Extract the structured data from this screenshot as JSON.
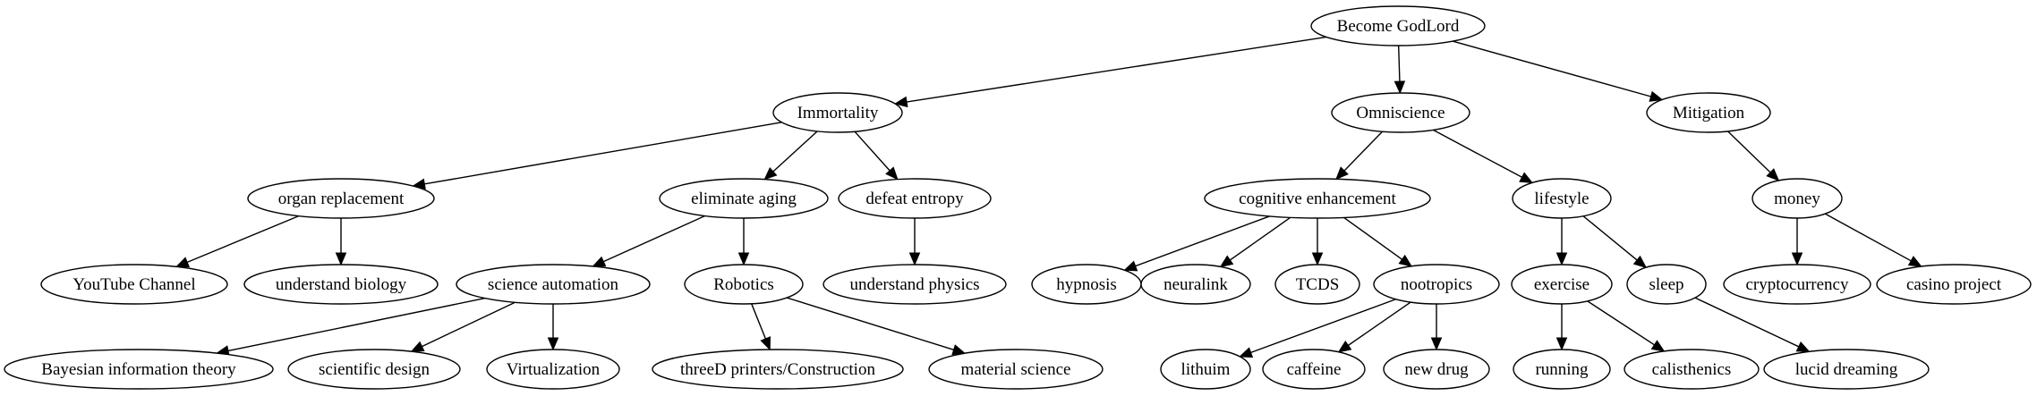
{
  "graph": {
    "nodes": [
      {
        "id": "godlord",
        "label": "Become GodLord"
      },
      {
        "id": "immortality",
        "label": "Immortality"
      },
      {
        "id": "omniscience",
        "label": "Omniscience"
      },
      {
        "id": "mitigation",
        "label": "Mitigation"
      },
      {
        "id": "organ",
        "label": "organ replacement"
      },
      {
        "id": "aging",
        "label": "eliminate aging"
      },
      {
        "id": "entropy",
        "label": "defeat entropy"
      },
      {
        "id": "cognitive",
        "label": "cognitive enhancement"
      },
      {
        "id": "lifestyle",
        "label": "lifestyle"
      },
      {
        "id": "money",
        "label": "money"
      },
      {
        "id": "youtube",
        "label": "YouTube Channel"
      },
      {
        "id": "biology",
        "label": "understand biology"
      },
      {
        "id": "sciauto",
        "label": "science automation"
      },
      {
        "id": "robotics",
        "label": "Robotics"
      },
      {
        "id": "physics",
        "label": "understand physics"
      },
      {
        "id": "hypnosis",
        "label": "hypnosis"
      },
      {
        "id": "neuralink",
        "label": "neuralink"
      },
      {
        "id": "tcds",
        "label": "TCDS"
      },
      {
        "id": "nootropics",
        "label": "nootropics"
      },
      {
        "id": "exercise",
        "label": "exercise"
      },
      {
        "id": "sleep",
        "label": "sleep"
      },
      {
        "id": "crypto",
        "label": "cryptocurrency"
      },
      {
        "id": "casino",
        "label": "casino project"
      },
      {
        "id": "bayes",
        "label": "Bayesian information theory"
      },
      {
        "id": "scidesign",
        "label": "scientific design"
      },
      {
        "id": "virtual",
        "label": "Virtualization"
      },
      {
        "id": "threed",
        "label": "threeD printers/Construction"
      },
      {
        "id": "material",
        "label": "material science"
      },
      {
        "id": "lithuim",
        "label": "lithuim"
      },
      {
        "id": "caffeine",
        "label": "caffeine"
      },
      {
        "id": "newdrug",
        "label": "new drug"
      },
      {
        "id": "running",
        "label": "running"
      },
      {
        "id": "calisthenics",
        "label": "calisthenics"
      },
      {
        "id": "lucid",
        "label": "lucid dreaming"
      }
    ],
    "edges": [
      [
        "godlord",
        "immortality"
      ],
      [
        "godlord",
        "omniscience"
      ],
      [
        "godlord",
        "mitigation"
      ],
      [
        "immortality",
        "organ"
      ],
      [
        "immortality",
        "aging"
      ],
      [
        "immortality",
        "entropy"
      ],
      [
        "omniscience",
        "cognitive"
      ],
      [
        "omniscience",
        "lifestyle"
      ],
      [
        "mitigation",
        "money"
      ],
      [
        "organ",
        "youtube"
      ],
      [
        "organ",
        "biology"
      ],
      [
        "aging",
        "sciauto"
      ],
      [
        "aging",
        "robotics"
      ],
      [
        "entropy",
        "physics"
      ],
      [
        "cognitive",
        "hypnosis"
      ],
      [
        "cognitive",
        "neuralink"
      ],
      [
        "cognitive",
        "tcds"
      ],
      [
        "cognitive",
        "nootropics"
      ],
      [
        "lifestyle",
        "exercise"
      ],
      [
        "lifestyle",
        "sleep"
      ],
      [
        "money",
        "crypto"
      ],
      [
        "money",
        "casino"
      ],
      [
        "sciauto",
        "bayes"
      ],
      [
        "sciauto",
        "scidesign"
      ],
      [
        "sciauto",
        "virtual"
      ],
      [
        "robotics",
        "threed"
      ],
      [
        "robotics",
        "material"
      ],
      [
        "nootropics",
        "lithuim"
      ],
      [
        "nootropics",
        "caffeine"
      ],
      [
        "nootropics",
        "newdrug"
      ],
      [
        "exercise",
        "running"
      ],
      [
        "exercise",
        "calisthenics"
      ],
      [
        "sleep",
        "lucid"
      ]
    ]
  }
}
